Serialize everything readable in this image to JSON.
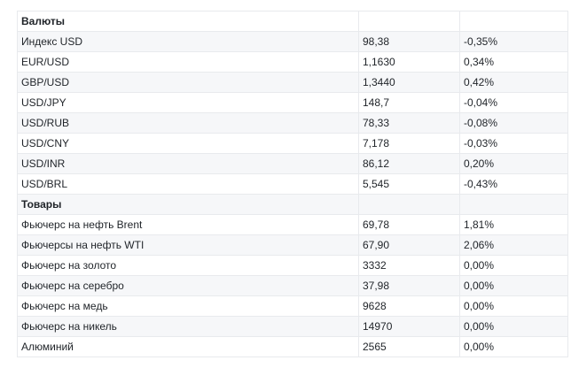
{
  "rows": [
    {
      "name": "Валюты",
      "value": "",
      "change": "",
      "section": true
    },
    {
      "name": "Индекс USD",
      "value": "98,38",
      "change": "-0,35%"
    },
    {
      "name": "EUR/USD",
      "value": "1,1630",
      "change": "0,34%"
    },
    {
      "name": "GBP/USD",
      "value": "1,3440",
      "change": "0,42%"
    },
    {
      "name": "USD/JPY",
      "value": "148,7",
      "change": "-0,04%"
    },
    {
      "name": "USD/RUB",
      "value": "78,33",
      "change": "-0,08%"
    },
    {
      "name": "USD/CNY",
      "value": "7,178",
      "change": "-0,03%"
    },
    {
      "name": "USD/INR",
      "value": "86,12",
      "change": "0,20%"
    },
    {
      "name": "USD/BRL",
      "value": "5,545",
      "change": "-0,43%"
    },
    {
      "name": "Товары",
      "value": "",
      "change": "",
      "section": true
    },
    {
      "name": "Фьючерс на нефть Brent",
      "value": "69,78",
      "change": "1,81%"
    },
    {
      "name": "Фьючерсы на нефть WTI",
      "value": "67,90",
      "change": "2,06%"
    },
    {
      "name": "Фьючерс на золото",
      "value": "3332",
      "change": "0,00%"
    },
    {
      "name": "Фьючерс на серебро",
      "value": "37,98",
      "change": "0,00%"
    },
    {
      "name": "Фьючерс на медь",
      "value": "9628",
      "change": "0,00%"
    },
    {
      "name": "Фьючерс на никель",
      "value": "14970",
      "change": "0,00%"
    },
    {
      "name": "Алюминий",
      "value": "2565",
      "change": "0,00%"
    }
  ]
}
